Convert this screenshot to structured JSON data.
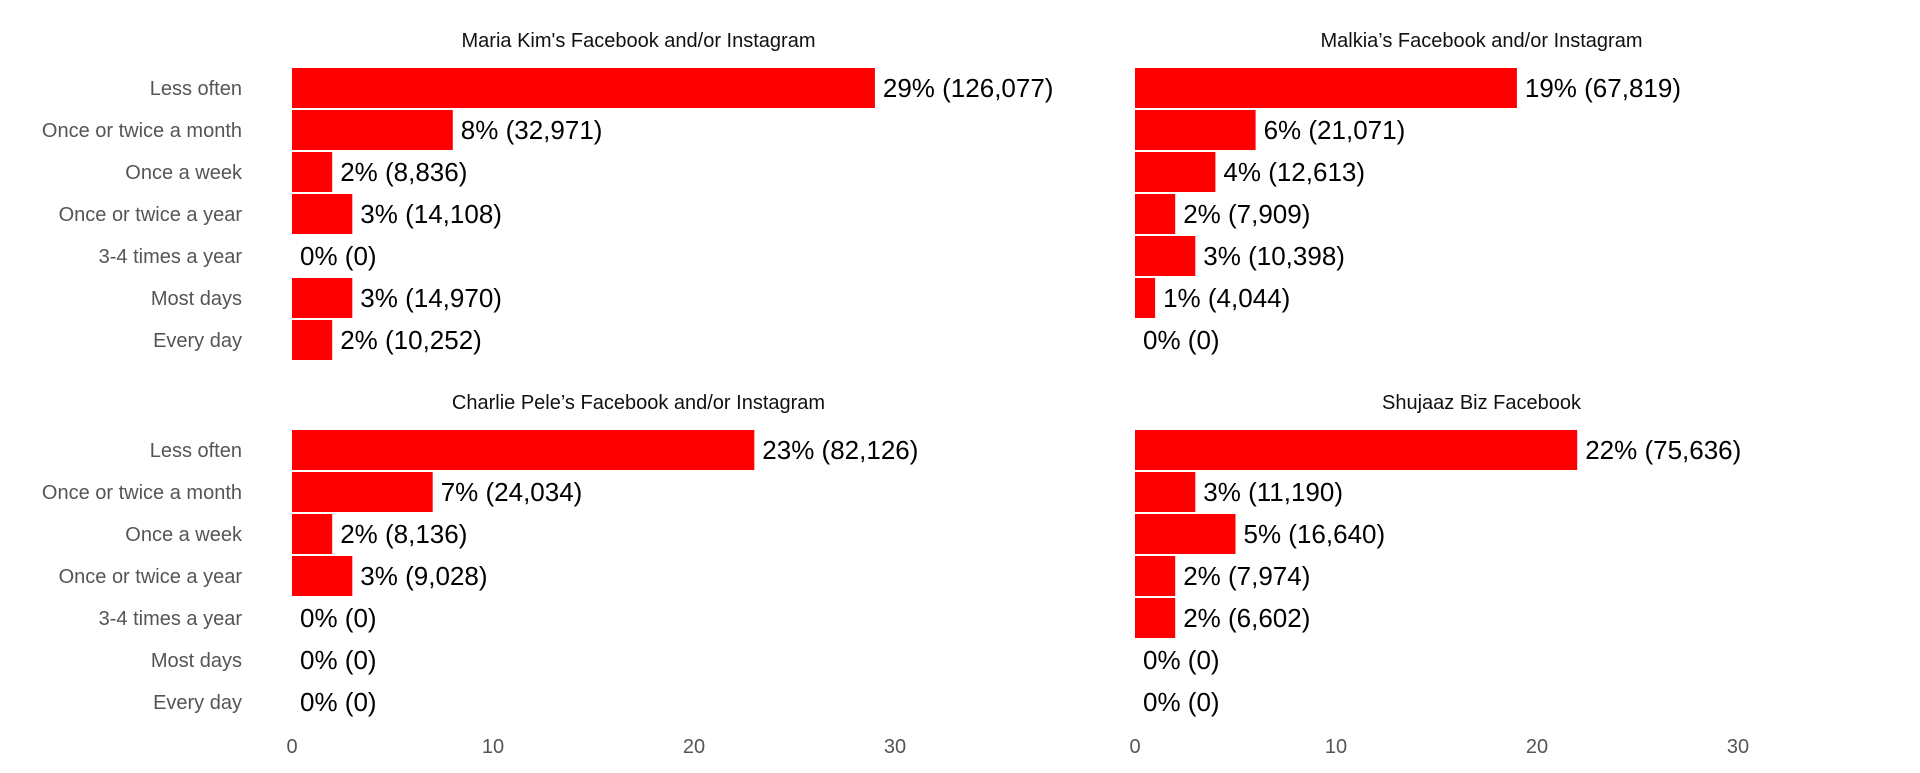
{
  "colors": {
    "bar": "#ff0000",
    "category_label": "#555555",
    "tick_label": "#555555",
    "title": "#111111",
    "value_label": "#000000",
    "background": "#ffffff"
  },
  "chart_data": [
    {
      "type": "bar",
      "orientation": "horizontal",
      "title": "Maria Kim's Facebook and/or Instagram",
      "categories": [
        "Less often",
        "Once or twice a month",
        "Once a week",
        "Once or twice a year",
        "3-4 times a year",
        "Most days",
        "Every day"
      ],
      "values": [
        29,
        8,
        2,
        3,
        0,
        3,
        2
      ],
      "labels": [
        "29% (126,077)",
        "8% (32,971)",
        "2% (8,836)",
        "3% (14,108)",
        "0% (0)",
        "3% (14,970)",
        "2% (10,252)"
      ],
      "xlim": [
        0,
        30
      ],
      "xticks": [
        0,
        10,
        20,
        30
      ],
      "show_xticks": false,
      "grid": false
    },
    {
      "type": "bar",
      "orientation": "horizontal",
      "title": "Malkia’s Facebook and/or Instagram",
      "categories": [
        "Less often",
        "Once or twice a month",
        "Once a week",
        "Once or twice a year",
        "3-4 times a year",
        "Most days",
        "Every day"
      ],
      "values": [
        19,
        6,
        4,
        2,
        3,
        1,
        0
      ],
      "labels": [
        "19% (67,819)",
        "6% (21,071)",
        "4% (12,613)",
        "2% (7,909)",
        "3% (10,398)",
        "1% (4,044)",
        "0% (0)"
      ],
      "xlim": [
        0,
        30
      ],
      "xticks": [
        0,
        10,
        20,
        30
      ],
      "show_xticks": false,
      "grid": false
    },
    {
      "type": "bar",
      "orientation": "horizontal",
      "title": "Charlie Pele’s Facebook and/or Instagram",
      "categories": [
        "Less often",
        "Once or twice a month",
        "Once a week",
        "Once or twice a year",
        "3-4 times a year",
        "Most days",
        "Every day"
      ],
      "values": [
        23,
        7,
        2,
        3,
        0,
        0,
        0
      ],
      "labels": [
        "23% (82,126)",
        "7% (24,034)",
        "2% (8,136)",
        "3% (9,028)",
        "0% (0)",
        "0% (0)",
        "0% (0)"
      ],
      "xlim": [
        0,
        30
      ],
      "xticks": [
        0,
        10,
        20,
        30
      ],
      "show_xticks": true,
      "grid": false
    },
    {
      "type": "bar",
      "orientation": "horizontal",
      "title": "Shujaaz Biz Facebook",
      "categories": [
        "Less often",
        "Once or twice a month",
        "Once a week",
        "Once or twice a year",
        "3-4 times a year",
        "Most days",
        "Every day"
      ],
      "values": [
        22,
        3,
        5,
        2,
        2,
        0,
        0
      ],
      "labels": [
        "22% (75,636)",
        "3% (11,190)",
        "5% (16,640)",
        "2% (7,974)",
        "2% (6,602)",
        "0% (0)",
        "0% (0)"
      ],
      "xlim": [
        0,
        30
      ],
      "xticks": [
        0,
        10,
        20,
        30
      ],
      "show_xticks": true,
      "grid": false
    }
  ]
}
